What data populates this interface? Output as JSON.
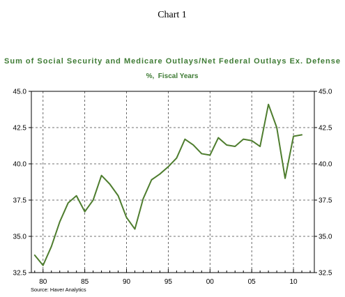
{
  "header": {
    "chart_label": "Chart 1"
  },
  "colors": {
    "title": "#3e7b34",
    "series": "#4e7d2e"
  },
  "chart_data": {
    "type": "line",
    "title": "Sum of Social Security and Medicare Outlays/Net Federal Outlays Ex. Defense",
    "subtitle": "%,  Fiscal Years",
    "xlabel": "",
    "ylabel": "",
    "xlim": [
      1978.6,
      2012.5
    ],
    "ylim": [
      32.5,
      45.0
    ],
    "grid": true,
    "x_ticks": [
      1980,
      1985,
      1990,
      1995,
      2000,
      2005,
      2010
    ],
    "x_tick_labels": [
      "80",
      "85",
      "90",
      "95",
      "00",
      "05",
      "10"
    ],
    "y_ticks": [
      32.5,
      35.0,
      37.5,
      40.0,
      42.5,
      45.0
    ],
    "y_tick_labels": [
      "32.5",
      "35.0",
      "37.5",
      "40.0",
      "42.5",
      "45.0"
    ],
    "series": [
      {
        "x": [
          1979,
          1980,
          1981,
          1982,
          1983,
          1984,
          1985,
          1986,
          1987,
          1988,
          1989,
          1990,
          1991,
          1992,
          1993,
          1994,
          1995,
          1996,
          1997,
          1998,
          1999,
          2000,
          2001,
          2002,
          2003,
          2004,
          2005,
          2006,
          2007,
          2008,
          2009,
          2010,
          2011
        ],
        "values": [
          33.7,
          33.0,
          34.3,
          36.0,
          37.3,
          37.8,
          36.7,
          37.5,
          39.2,
          38.6,
          37.8,
          36.3,
          35.5,
          37.6,
          38.9,
          39.3,
          39.8,
          40.4,
          41.7,
          41.3,
          40.7,
          40.6,
          41.8,
          41.3,
          41.2,
          41.7,
          41.6,
          41.2,
          44.1,
          42.5,
          39.0,
          41.9,
          42.0
        ]
      }
    ]
  },
  "footer": {
    "source": "Source: Haver Analytics"
  }
}
